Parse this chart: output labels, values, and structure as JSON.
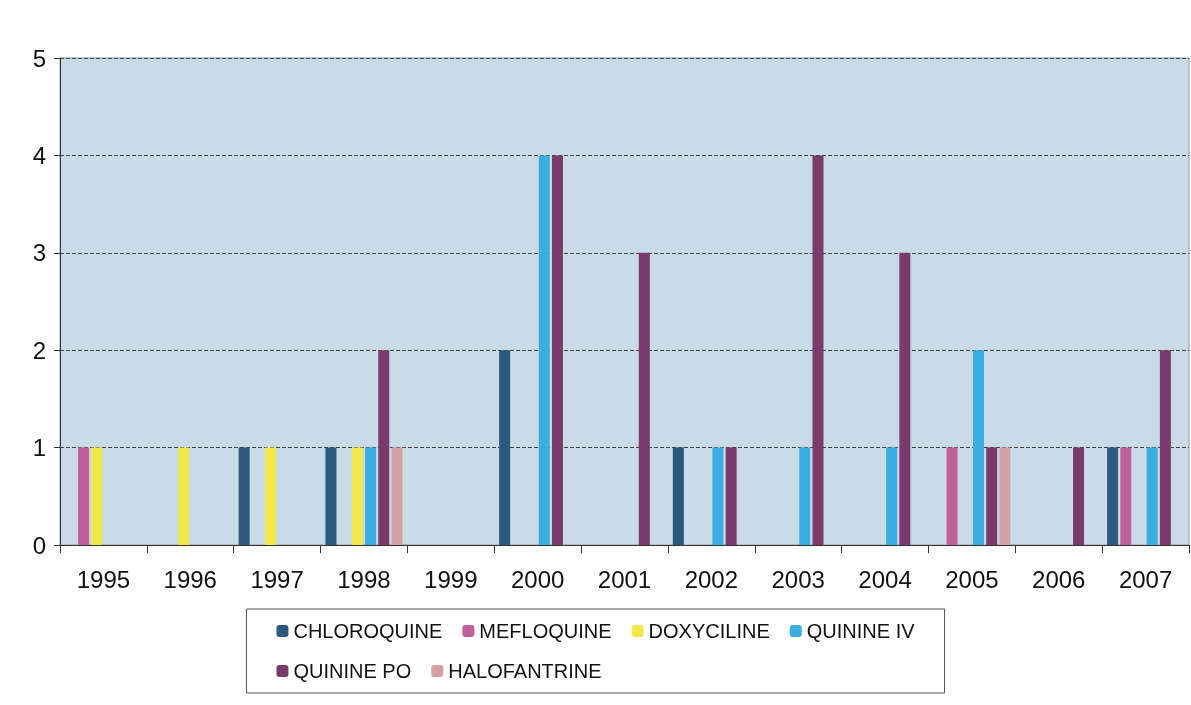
{
  "chart_data": {
    "type": "bar",
    "categories": [
      "1995",
      "1996",
      "1997",
      "1998",
      "1999",
      "2000",
      "2001",
      "2002",
      "2003",
      "2004",
      "2005",
      "2006",
      "2007"
    ],
    "series": [
      {
        "name": "CHLOROQUINE",
        "color": "#2c5a7e",
        "values": [
          0,
          0,
          1,
          1,
          0,
          2,
          0,
          1,
          0,
          0,
          0,
          0,
          1
        ]
      },
      {
        "name": "MEFLOQUINE",
        "color": "#c0609a",
        "values": [
          1,
          0,
          0,
          0,
          0,
          0,
          0,
          0,
          0,
          0,
          1,
          0,
          1
        ]
      },
      {
        "name": "DOXYCILINE",
        "color": "#f2e84a",
        "values": [
          1,
          1,
          1,
          1,
          0,
          0,
          0,
          0,
          0,
          0,
          0,
          0,
          0
        ]
      },
      {
        "name": "QUININE IV",
        "color": "#3aaee0",
        "values": [
          0,
          0,
          0,
          1,
          0,
          4,
          0,
          1,
          1,
          1,
          2,
          0,
          1
        ]
      },
      {
        "name": "QUININE PO",
        "color": "#7a3a6c",
        "values": [
          0,
          0,
          0,
          2,
          0,
          4,
          3,
          1,
          4,
          3,
          1,
          1,
          2
        ]
      },
      {
        "name": "HALOFANTRINE",
        "color": "#d4a0a4",
        "values": [
          0,
          0,
          0,
          1,
          0,
          0,
          0,
          0,
          0,
          0,
          1,
          0,
          0
        ]
      }
    ],
    "ylim": [
      0,
      5
    ],
    "yticks": [
      0,
      1,
      2,
      3,
      4,
      5
    ],
    "grid": "y",
    "legend": "bottom"
  }
}
